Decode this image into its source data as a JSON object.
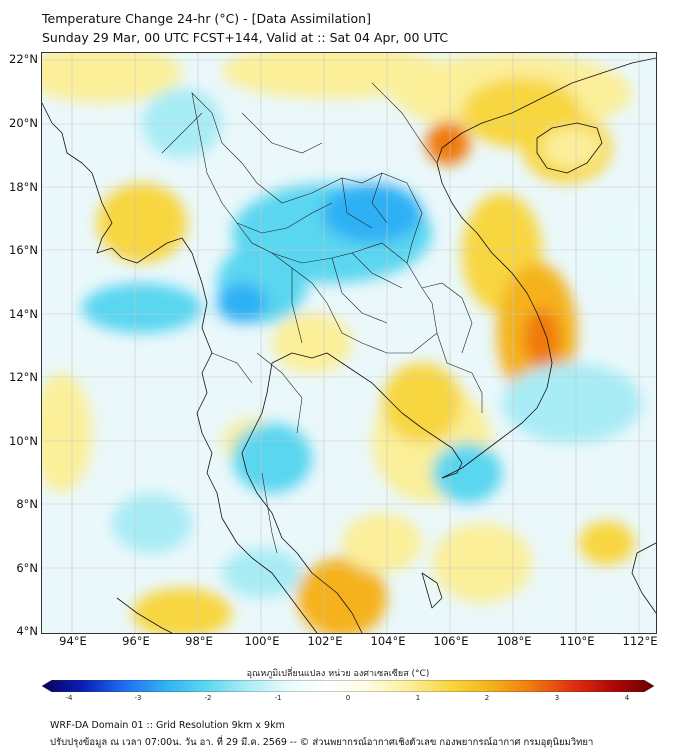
{
  "header": {
    "title_line1": "Temperature Change 24-hr (°C) - [Data Assimilation]",
    "title_line2": "Sunday 29 Mar, 00 UTC FCST+144, Valid at :: Sat 04 Apr, 00 UTC"
  },
  "map": {
    "lat_labels": [
      "22°N",
      "20°N",
      "18°N",
      "16°N",
      "14°N",
      "12°N",
      "10°N",
      "8°N",
      "6°N",
      "4°N"
    ],
    "lon_labels": [
      "94°E",
      "96°E",
      "98°E",
      "100°E",
      "102°E",
      "104°E",
      "106°E",
      "108°E",
      "110°E",
      "112°E"
    ],
    "extent": {
      "lon": [
        93,
        112.5
      ],
      "lat": [
        4,
        22.2
      ]
    },
    "gridlines": true
  },
  "colorbar": {
    "title": "อุณหภูมิเปลี่ยนแปลง หน่วย องศาเซลเซียส (°C)",
    "ticks": [
      "-4",
      "-3",
      "-2",
      "-1",
      "0",
      "1",
      "2",
      "3",
      "4"
    ],
    "range": [
      -4,
      4
    ],
    "colors": [
      "#08005e",
      "#0a1fb8",
      "#1f6cf0",
      "#2fb0f5",
      "#5ad6f0",
      "#a8ecf5",
      "#e8fafc",
      "#ffffff",
      "#fffbe0",
      "#fbef9a",
      "#f8d640",
      "#f5b21a",
      "#f07a10",
      "#e03010",
      "#b00808",
      "#6a0000"
    ]
  },
  "footer": {
    "line1": "WRF-DA Domain 01 :: Grid Resolution 9km x 9km",
    "line2": "ปรับปรุงข้อมูล ณ เวลา 07:00น. วัน อา. ที่ 29 มี.ค. 2569 -- © ส่วนพยากรณ์อากาศเชิงตัวเลข กองพยากรณ์อากาศ กรมอุตุนิยมวิทยา"
  }
}
